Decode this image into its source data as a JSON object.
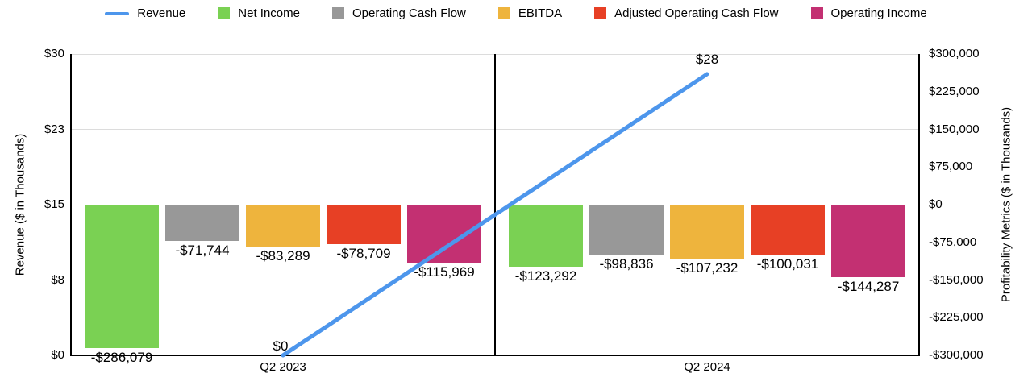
{
  "legend": {
    "items": [
      {
        "label": "Revenue",
        "color": "#4D96EC",
        "swatch": "line"
      },
      {
        "label": "Net Income",
        "color": "#7AD153",
        "swatch": "square"
      },
      {
        "label": "Operating Cash Flow",
        "color": "#989898",
        "swatch": "square"
      },
      {
        "label": "EBITDA",
        "color": "#EEB43D",
        "swatch": "square"
      },
      {
        "label": "Adjusted Operating Cash Flow",
        "color": "#E74025",
        "swatch": "square"
      },
      {
        "label": "Operating Income",
        "color": "#C33072",
        "swatch": "square"
      }
    ]
  },
  "chart_data": {
    "type": "combo-bar-line",
    "categories": [
      "Q2 2023",
      "Q2 2024"
    ],
    "bar_series": [
      {
        "name": "Net Income",
        "color": "#7AD153",
        "values": [
          -286079,
          -123292
        ],
        "labels": [
          "-$286,079",
          "-$123,292"
        ]
      },
      {
        "name": "Operating Cash Flow",
        "color": "#989898",
        "values": [
          -71744,
          -98836
        ],
        "labels": [
          "-$71,744",
          "-$98,836"
        ]
      },
      {
        "name": "EBITDA",
        "color": "#EEB43D",
        "values": [
          -83289,
          -107232
        ],
        "labels": [
          "-$83,289",
          "-$107,232"
        ]
      },
      {
        "name": "Adjusted Operating Cash Flow",
        "color": "#E74025",
        "values": [
          -78709,
          -100031
        ],
        "labels": [
          "-$78,709",
          "-$100,031"
        ]
      },
      {
        "name": "Operating Income",
        "color": "#C33072",
        "values": [
          -115969,
          -144287
        ],
        "labels": [
          "-$115,969",
          "-$144,287"
        ]
      }
    ],
    "line_series": {
      "name": "Revenue",
      "color": "#4D96EC",
      "values": [
        0,
        28
      ],
      "labels": [
        "$0",
        "$28"
      ]
    },
    "left_axis": {
      "title": "Revenue ($ in Thousands)",
      "min": 0,
      "max": 30,
      "ticks": [
        {
          "v": 0,
          "label": "$0"
        },
        {
          "v": 7.5,
          "label": "$8"
        },
        {
          "v": 15,
          "label": "$15"
        },
        {
          "v": 22.5,
          "label": "$23"
        },
        {
          "v": 30,
          "label": "$30"
        }
      ]
    },
    "right_axis": {
      "title": "Profitability Metrics ($ in Thousands)",
      "min": -300000,
      "max": 300000,
      "ticks": [
        {
          "v": 300000,
          "label": "$300,000"
        },
        {
          "v": 225000,
          "label": "$225,000"
        },
        {
          "v": 150000,
          "label": "$150,000"
        },
        {
          "v": 75000,
          "label": "$75,000"
        },
        {
          "v": 0,
          "label": "$0"
        },
        {
          "v": -75000,
          "label": "-$75,000"
        },
        {
          "v": -150000,
          "label": "-$150,000"
        },
        {
          "v": -225000,
          "label": "-$225,000"
        },
        {
          "v": -300000,
          "label": "-$300,000"
        }
      ]
    },
    "gridlines_at_left_values": [
      7.5,
      15,
      22.5,
      30
    ],
    "grid_color": "#dcdcdc",
    "axis_color": "#000000"
  }
}
